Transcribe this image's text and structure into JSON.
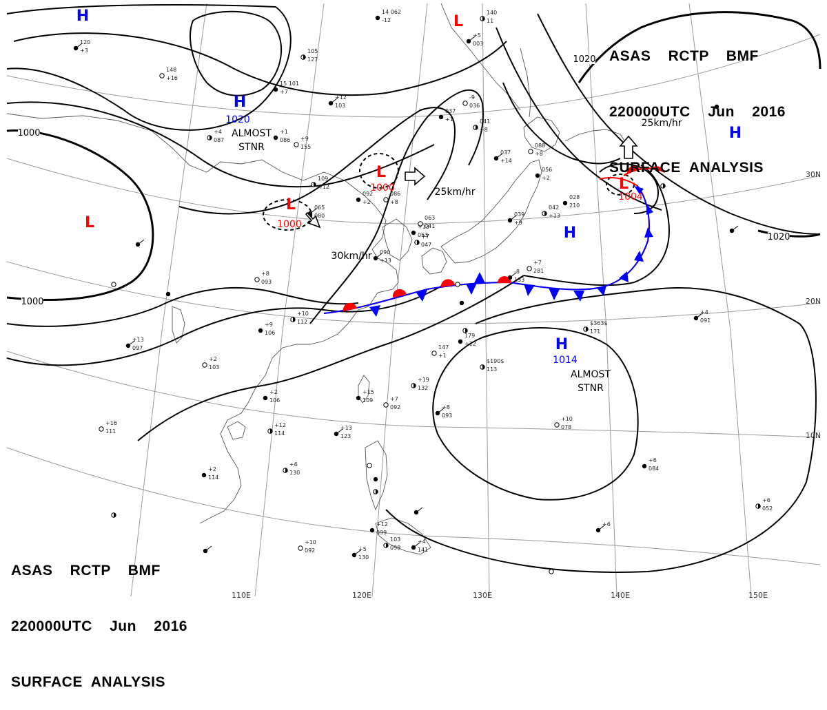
{
  "header": {
    "line1": "ASAS    RCTP    BMF",
    "line2": "220000UTC    Jun    2016",
    "line3": "SURFACE  ANALYSIS"
  },
  "pressure_centers": [
    {
      "type": "H",
      "value": "",
      "note": ""
    },
    {
      "type": "H",
      "value": "1020",
      "note": "ALMOST STNR"
    },
    {
      "type": "L",
      "value": "",
      "note": ""
    },
    {
      "type": "L",
      "value": "1000",
      "note": ""
    },
    {
      "type": "L",
      "value": "1000",
      "note": ""
    },
    {
      "type": "L",
      "value": "",
      "note": ""
    },
    {
      "type": "L",
      "value": "1004",
      "note": ""
    },
    {
      "type": "H",
      "value": "",
      "note": ""
    },
    {
      "type": "H",
      "value": "",
      "note": ""
    },
    {
      "type": "H",
      "value": "1014",
      "note": "ALMOST STNR"
    }
  ],
  "center_labels": {
    "almost": "ALMOST",
    "stnr": "STNR"
  },
  "isobar_labels": [
    "1000",
    "1000",
    "1020",
    "1020"
  ],
  "motion_labels": [
    "30km/hr",
    "25km/hr",
    "25km/hr"
  ],
  "latitude_labels": [
    "30N",
    "20N",
    "10N"
  ],
  "longitude_labels": [
    "110E",
    "120E",
    "130E",
    "140E",
    "150E"
  ],
  "station_obs": [
    "14 062",
    "-12",
    "140",
    "11",
    "120",
    "+3",
    "148",
    "+16",
    "15 101",
    "+7",
    "105",
    "127",
    "+12",
    "103",
    "+9",
    "155",
    "+1",
    "086",
    "+4",
    "087",
    "+5",
    "003",
    "-9",
    "036",
    "037",
    "+1",
    "041",
    "+8",
    "037",
    "+14",
    "088",
    "+8",
    "056",
    "+2",
    "042",
    "+13",
    "039",
    "+9",
    "063",
    "041",
    "+13",
    "063",
    "+7",
    "047",
    "090",
    "+13",
    "086",
    "+8",
    "092",
    "+2",
    "109",
    "+12",
    "065",
    "080",
    "+8",
    "093",
    "+9",
    "106",
    "+10",
    "112",
    "+13",
    "097",
    "+2",
    "103",
    "+2",
    "106",
    "+12",
    "114",
    "+13",
    "123",
    "+16",
    "111",
    "+2",
    "114",
    "+6",
    "130",
    "+5",
    "130",
    "+10",
    "092",
    "+12",
    "099",
    "103",
    "098",
    "+4",
    "141",
    "147",
    "+1",
    "179",
    "+12",
    "$190$",
    "113",
    "+8",
    "093",
    "+7",
    "092",
    "+15",
    "109",
    "+19",
    "132",
    "-8",
    "133",
    "+7",
    "281",
    "028",
    "210",
    "$363$",
    "171",
    "+4",
    "091",
    "+10",
    "078",
    "+6",
    "084",
    "+6",
    "052",
    "+6"
  ]
}
